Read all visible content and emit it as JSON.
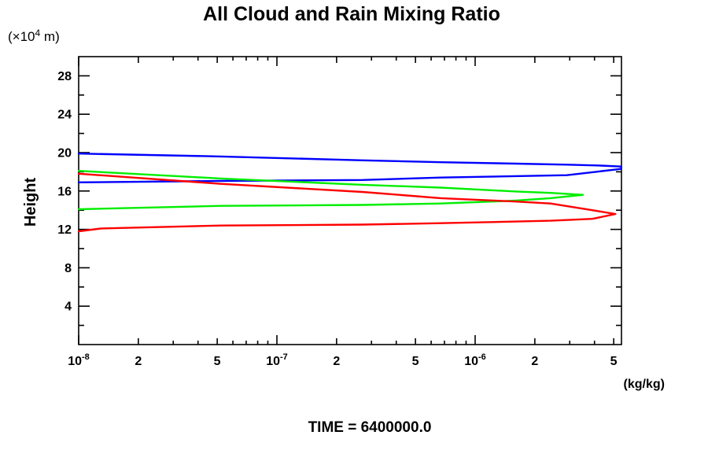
{
  "page": {
    "background": "#ffffff",
    "text_color": "#000000"
  },
  "chart_data": {
    "type": "line",
    "title": "All Cloud and Rain Mixing Ratio",
    "footer": "TIME = 6400000.0",
    "x_axis": {
      "unit": "(kg/kg)",
      "scale": "log",
      "min": 1e-08,
      "max": 5.47e-06,
      "ticks": [
        {
          "text": "10",
          "sup": "-8",
          "value": 1e-08
        },
        {
          "text": "2",
          "value": 2e-08
        },
        {
          "text": "5",
          "value": 5e-08
        },
        {
          "text": "10",
          "sup": "-7",
          "value": 1e-07
        },
        {
          "text": "2",
          "value": 2e-07
        },
        {
          "text": "5",
          "value": 5e-07
        },
        {
          "text": "10",
          "sup": "-6",
          "value": 1e-06
        },
        {
          "text": "2",
          "value": 2e-06
        },
        {
          "text": "5",
          "value": 5e-06
        }
      ],
      "decades": [
        1e-08,
        1e-07,
        1e-06
      ],
      "minor_multipliers": [
        2,
        3,
        4,
        5,
        6,
        7,
        8,
        9
      ],
      "grid": false
    },
    "y_axis": {
      "label": "Height",
      "unit_prefix": "(×10",
      "unit_sup": "4",
      "unit_suffix": " m)",
      "min": 0,
      "max": 30,
      "major_ticks": [
        4,
        8,
        12,
        16,
        20,
        24,
        28
      ],
      "minor_ticks": [
        2,
        6,
        10,
        14,
        18,
        22,
        26
      ],
      "grid": false
    },
    "legend": "none",
    "series": [
      {
        "name": "series-blue",
        "color": "#0000ff",
        "points": [
          [
            1e-08,
            19.9
          ],
          [
            5.2e-08,
            19.6
          ],
          [
            2.7e-07,
            19.2
          ],
          [
            6.7e-07,
            19.0
          ],
          [
            1.6e-06,
            18.85
          ],
          [
            2.9e-06,
            18.75
          ],
          [
            4.3e-06,
            18.65
          ],
          [
            5.45e-06,
            18.55
          ],
          [
            5.45e-06,
            18.3
          ],
          [
            2.9e-06,
            17.65
          ],
          [
            6.7e-07,
            17.4
          ],
          [
            2.7e-07,
            17.15
          ],
          [
            5.2e-08,
            17.05
          ],
          [
            1e-08,
            16.9
          ]
        ]
      },
      {
        "name": "series-green",
        "color": "#00ee00",
        "points": [
          [
            1e-08,
            18.1
          ],
          [
            5.2e-08,
            17.3
          ],
          [
            2.7e-07,
            16.65
          ],
          [
            6.7e-07,
            16.35
          ],
          [
            1.6e-06,
            15.95
          ],
          [
            2.4e-06,
            15.8
          ],
          [
            3.5e-06,
            15.6
          ],
          [
            2.4e-06,
            15.25
          ],
          [
            1.6e-06,
            15.0
          ],
          [
            6.7e-07,
            14.7
          ],
          [
            2.7e-07,
            14.55
          ],
          [
            5.2e-08,
            14.45
          ],
          [
            1e-08,
            14.1
          ]
        ]
      },
      {
        "name": "series-red",
        "color": "#ff0000",
        "points": [
          [
            1e-08,
            17.8
          ],
          [
            5.2e-08,
            16.75
          ],
          [
            2.7e-07,
            15.9
          ],
          [
            6.7e-07,
            15.25
          ],
          [
            1.6e-06,
            14.55
          ],
          [
            2.4e-06,
            14.7,
            "skip"
          ],
          [
            1e-08,
            17.8,
            "restart"
          ]
        ]
      }
    ]
  }
}
